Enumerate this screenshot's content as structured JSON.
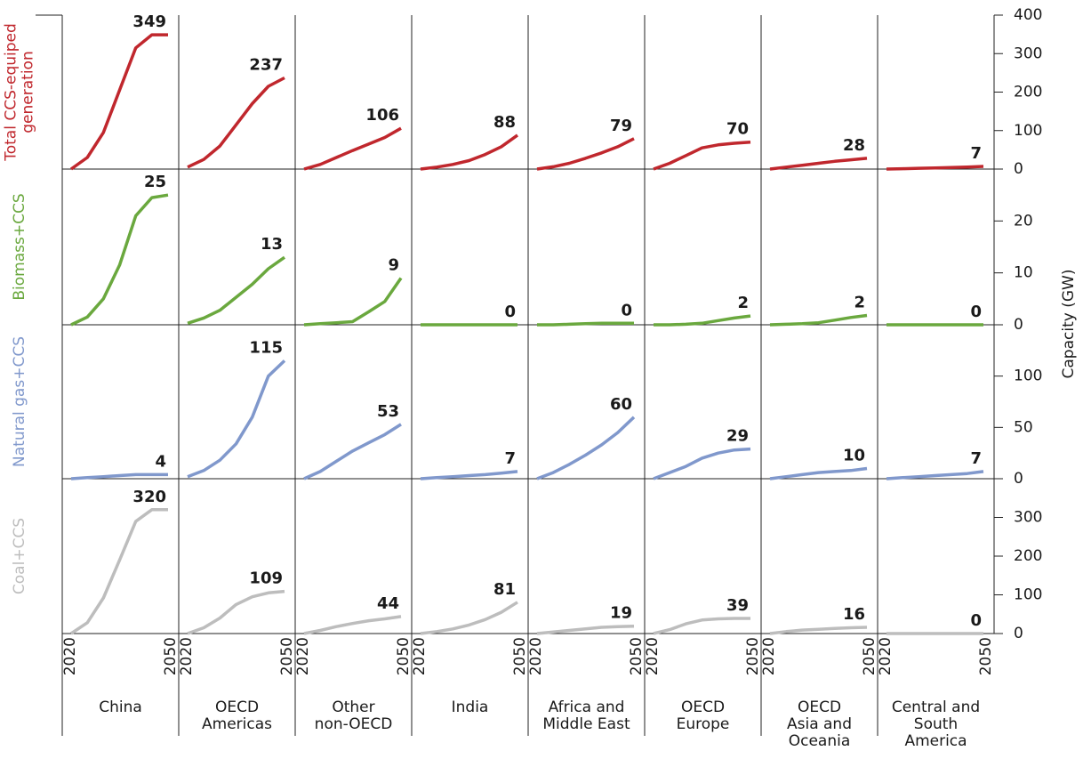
{
  "chart_data": {
    "type": "line",
    "x": [
      2020,
      2025,
      2030,
      2035,
      2040,
      2045,
      2050
    ],
    "xlim": [
      2020,
      2050
    ],
    "xticks": [
      2020,
      2050
    ],
    "regions": [
      [
        "China"
      ],
      [
        "OECD",
        "Americas"
      ],
      [
        "Other",
        "non-OECD"
      ],
      [
        "India"
      ],
      [
        "Africa and",
        "Middle East"
      ],
      [
        "OECD",
        "Europe"
      ],
      [
        "OECD",
        "Asia and",
        "Oceania"
      ],
      [
        "Central and",
        "South",
        "America"
      ]
    ],
    "y_axis_label": "Capacity (GW)",
    "rows": [
      {
        "name": [
          "Total CCS-equiped",
          "generation"
        ],
        "color": "#c0272d",
        "ylim": [
          0,
          400
        ],
        "yticks": [
          0,
          100,
          200,
          300,
          400
        ],
        "series": [
          {
            "values": [
              0,
              30,
              95,
              205,
              315,
              349,
              349
            ]
          },
          {
            "values": [
              5,
              25,
              60,
              115,
              170,
              215,
              237
            ]
          },
          {
            "values": [
              0,
              12,
              30,
              48,
              65,
              82,
              106
            ]
          },
          {
            "values": [
              0,
              5,
              12,
              22,
              38,
              58,
              88
            ]
          },
          {
            "values": [
              0,
              6,
              15,
              28,
              42,
              58,
              79
            ]
          },
          {
            "values": [
              0,
              15,
              35,
              55,
              63,
              67,
              70
            ]
          },
          {
            "values": [
              0,
              5,
              10,
              15,
              20,
              24,
              28
            ]
          },
          {
            "values": [
              0,
              1,
              2,
              3,
              4,
              5,
              7
            ]
          }
        ]
      },
      {
        "name": [
          "Biomass+CCS"
        ],
        "color": "#6aa83e",
        "ylim": [
          0,
          30
        ],
        "yticks": [
          0,
          10,
          20
        ],
        "series": [
          {
            "values": [
              0,
              1.5,
              5,
              11.5,
              21,
              24.5,
              25
            ]
          },
          {
            "values": [
              0.3,
              1.3,
              2.8,
              5.3,
              7.8,
              10.8,
              13
            ]
          },
          {
            "values": [
              0,
              0.2,
              0.4,
              0.6,
              2.5,
              4.5,
              9
            ]
          },
          {
            "values": [
              0,
              0,
              0,
              0,
              0,
              0,
              0
            ]
          },
          {
            "values": [
              0,
              0,
              0.1,
              0.2,
              0.3,
              0.3,
              0.3
            ],
            "value_labels": [
              null,
              null,
              null,
              null,
              null,
              null,
              "0"
            ]
          },
          {
            "values": [
              0,
              0,
              0.1,
              0.3,
              0.8,
              1.3,
              1.7
            ],
            "value_labels": [
              null,
              null,
              null,
              null,
              null,
              null,
              "2"
            ]
          },
          {
            "values": [
              0,
              0.1,
              0.2,
              0.4,
              0.9,
              1.4,
              1.8
            ],
            "value_labels": [
              null,
              null,
              null,
              null,
              null,
              null,
              "2"
            ]
          },
          {
            "values": [
              0,
              0,
              0,
              0,
              0,
              0,
              0
            ]
          }
        ]
      },
      {
        "name": [
          "Natural gas+CCS"
        ],
        "color": "#8098cc",
        "ylim": [
          0,
          150
        ],
        "yticks": [
          0,
          50,
          100
        ],
        "series": [
          {
            "values": [
              0,
              1,
              2,
              3,
              4,
              4,
              4
            ]
          },
          {
            "values": [
              2,
              8,
              18,
              34,
              60,
              100,
              115
            ]
          },
          {
            "values": [
              0,
              7,
              17,
              27,
              35,
              43,
              53
            ]
          },
          {
            "values": [
              0,
              1,
              2,
              3,
              4,
              5.5,
              7
            ]
          },
          {
            "values": [
              0,
              6,
              14,
              23,
              33,
              45,
              60
            ]
          },
          {
            "values": [
              0,
              6,
              12,
              20,
              25,
              28,
              29
            ]
          },
          {
            "values": [
              0,
              2,
              4,
              6,
              7,
              8,
              10
            ]
          },
          {
            "values": [
              0,
              1,
              2,
              3,
              4,
              5,
              7
            ]
          }
        ]
      },
      {
        "name": [
          "Coal+CCS"
        ],
        "color": "#bdbdbd",
        "ylim": [
          0,
          400
        ],
        "yticks": [
          0,
          100,
          200,
          300
        ],
        "series": [
          {
            "values": [
              0,
              28,
              92,
              190,
              290,
              320,
              320
            ]
          },
          {
            "values": [
              0,
              15,
              40,
              75,
              95,
              105,
              109
            ]
          },
          {
            "values": [
              0,
              8,
              18,
              26,
              33,
              38,
              44
            ]
          },
          {
            "values": [
              0,
              5,
              12,
              22,
              36,
              55,
              81
            ]
          },
          {
            "values": [
              0,
              4,
              8,
              12,
              16,
              18,
              19
            ]
          },
          {
            "values": [
              0,
              10,
              25,
              35,
              38,
              39,
              39
            ]
          },
          {
            "values": [
              0,
              5,
              9,
              11,
              13,
              15,
              16
            ]
          },
          {
            "values": [
              0,
              0,
              0,
              0,
              0,
              0,
              0
            ]
          }
        ]
      }
    ]
  }
}
